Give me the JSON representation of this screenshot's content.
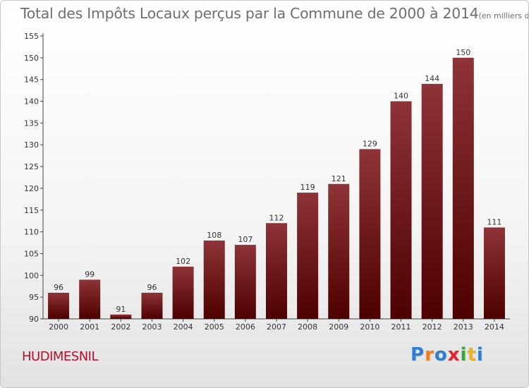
{
  "page": {
    "title": "Total des Impôts Locaux perçus par la Commune de 2000 à 2014",
    "unit": "(en milliers d'€)",
    "commune": "HUDIMESNIL",
    "logo": {
      "letters": [
        "P",
        "r",
        "o",
        "x",
        "i",
        "t",
        "i"
      ],
      "colors": [
        "#2f7fd1",
        "#ef7d1e",
        "#2f7fd1",
        "#e3222f",
        "#3aa63a",
        "#f0b41c",
        "#2f7fd1"
      ]
    }
  },
  "chart_data": {
    "type": "bar",
    "title": "Total des Impôts Locaux perçus par la Commune de 2000 à 2014",
    "unit": "(en milliers d'€)",
    "xlabel": "",
    "ylabel": "",
    "categories": [
      "2000",
      "2001",
      "2002",
      "2003",
      "2004",
      "2005",
      "2006",
      "2007",
      "2008",
      "2009",
      "2010",
      "2011",
      "2012",
      "2013",
      "2014"
    ],
    "values": [
      96,
      99,
      91,
      96,
      102,
      108,
      107,
      112,
      119,
      121,
      129,
      140,
      144,
      150,
      111
    ],
    "ylim": [
      90,
      155
    ],
    "yticks": [
      90,
      95,
      100,
      105,
      110,
      115,
      120,
      125,
      130,
      135,
      140,
      145,
      150,
      155
    ],
    "grid": false,
    "bar_color_top": "#8e3438",
    "bar_color_bottom": "#4e0000"
  }
}
